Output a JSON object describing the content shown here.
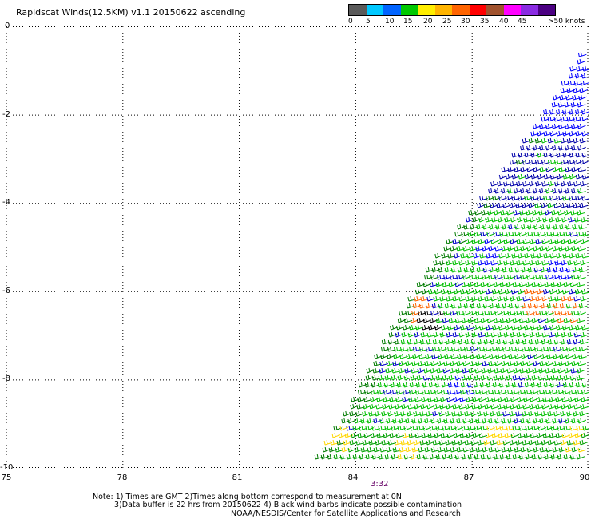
{
  "title": "Rapidscat Winds(12.5KM) v1.1 20150622 ascending",
  "legend": {
    "colors": [
      "#5a5a5a",
      "#00c8ff",
      "#0064ff",
      "#00c800",
      "#ffee00",
      "#ffb400",
      "#ff6400",
      "#ff0000",
      "#a0522d",
      "#ff00ff",
      "#8a2be2",
      "#4b0082"
    ],
    "labels": [
      "0",
      "5",
      "10",
      "15",
      "20",
      "25",
      "30",
      "35",
      "40",
      "45",
      ">50 knots"
    ]
  },
  "y_axis": {
    "labels": [
      "0",
      "-2",
      "-4",
      "-6",
      "-8",
      "-10"
    ],
    "range": [
      0,
      -10
    ]
  },
  "x_axis": {
    "labels": [
      "75",
      "78",
      "81",
      "84",
      "87",
      "90"
    ],
    "range": [
      75,
      90
    ]
  },
  "time_label": "3:32",
  "notes": {
    "line1": "Note: 1) Times are GMT 2)Times along bottom correspond to measurement at 0N",
    "line2": "3)Data buffer is 22 hrs from 20150622 4) Black wind barbs indicate possible contamination",
    "line3": "NOAA/NESDIS/Center for Satellite Applications and Research"
  },
  "swath": {
    "edge": [
      [
        90,
        -0.3
      ],
      [
        89,
        -1.8
      ],
      [
        87.5,
        -3.6
      ],
      [
        86,
        -5.3
      ],
      [
        84.8,
        -7
      ],
      [
        83.7,
        -8.8
      ],
      [
        82.8,
        -10
      ]
    ],
    "zones": [
      {
        "lat_top": 0,
        "lat_bottom": -2.6,
        "color": "#0000ff"
      },
      {
        "lat_top": -2.6,
        "lat_bottom": -4.2,
        "color": "#0000aa"
      },
      {
        "lat_top": -4.2,
        "lat_bottom": -9.2,
        "color": "#00c000"
      },
      {
        "lat_top": -9.2,
        "lat_bottom": -10,
        "color": "#00a000"
      }
    ],
    "patches": [
      {
        "lon": 88.5,
        "lat": -6.3,
        "color": "#ff6400"
      },
      {
        "lon": 89.4,
        "lat": -6.5,
        "color": "#ff6400"
      },
      {
        "lon": 85.9,
        "lat": -6.7,
        "color": "#000000"
      },
      {
        "lon": 85.6,
        "lat": -6.5,
        "color": "#ff6400"
      },
      {
        "lon": 83.5,
        "lat": -9.4,
        "color": "#ffd700"
      },
      {
        "lon": 85.2,
        "lat": -9.6,
        "color": "#ffd700"
      },
      {
        "lon": 87.6,
        "lat": -9.3,
        "color": "#ffd700"
      },
      {
        "lon": 89.6,
        "lat": -9.4,
        "color": "#ffd700"
      },
      {
        "lon": 84.1,
        "lat": -7.2,
        "color": "#ffd700"
      },
      {
        "lon": 86.6,
        "lat": -8.3,
        "color": "#0000ff"
      },
      {
        "lon": 89.2,
        "lat": -5.6,
        "color": "#0000ff"
      },
      {
        "lon": 87.3,
        "lat": -5.2,
        "color": "#0000ff"
      }
    ]
  }
}
